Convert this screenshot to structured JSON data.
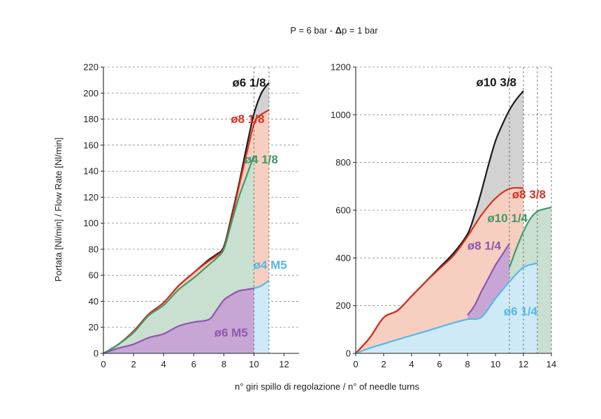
{
  "figure": {
    "condition_prefix": "P = 6 bar - ",
    "condition_delta": "Δ",
    "condition_suffix": "p = 1 bar",
    "ylabel": "Portata [Nl/min] / Flow Rate [Nl/min]",
    "xlabel": "n° giri spillo di regolazione / n° of needle turns"
  },
  "chart_data": [
    {
      "type": "area",
      "xlim": [
        0,
        13
      ],
      "ylim": [
        0,
        220
      ],
      "xticks": [
        0,
        2,
        4,
        6,
        8,
        10,
        12
      ],
      "yticks": [
        0,
        20,
        40,
        60,
        80,
        100,
        120,
        140,
        160,
        180,
        200,
        220
      ],
      "vlines": [
        10,
        11
      ],
      "grid": "horizontal dashed",
      "series": [
        {
          "name": "ø6 1/8",
          "color": "#1a1a1a",
          "fill": "#d2d2d2",
          "x": [
            0,
            1,
            2,
            3,
            4,
            5,
            6,
            7,
            7.5,
            8,
            8.5,
            9,
            9.5,
            10,
            10.5,
            11
          ],
          "y": [
            0,
            7,
            17,
            30,
            39,
            52,
            62,
            72,
            76,
            82,
            105,
            130,
            158,
            184,
            200,
            208
          ]
        },
        {
          "name": "ø8 1/8",
          "color": "#d9301e",
          "fill": "#f6cfc0",
          "x": [
            0,
            1,
            2,
            3,
            4,
            5,
            6,
            7,
            7.5,
            8,
            8.5,
            9,
            9.5,
            10,
            10.3,
            11
          ],
          "y": [
            0,
            7,
            17,
            30,
            39,
            52,
            62,
            71,
            75,
            81,
            103,
            128,
            153,
            176,
            182,
            187
          ]
        },
        {
          "name": "ø4 1/8",
          "color": "#3d9a6a",
          "fill": "#c9dfcf",
          "x": [
            0,
            1,
            2,
            3,
            4,
            5,
            6,
            7,
            7.5,
            8,
            8.5,
            9,
            9.5,
            10
          ],
          "y": [
            0,
            7,
            16,
            29,
            37,
            49,
            58,
            68,
            73,
            80,
            100,
            120,
            136,
            152
          ]
        },
        {
          "name": "ø4 M5",
          "color": "#55b8e6",
          "fill": "#cfeaf7",
          "x": [
            10,
            10.5,
            11
          ],
          "y": [
            50,
            52,
            56
          ]
        },
        {
          "name": "ø6 M5",
          "color": "#8e56ad",
          "fill": "#c7a6d6",
          "x": [
            0,
            1,
            2,
            3,
            4,
            5,
            6,
            7,
            7.5,
            8,
            8.5,
            9,
            9.5,
            10
          ],
          "y": [
            0,
            4,
            7,
            12,
            15,
            21,
            24,
            26,
            33,
            41,
            45,
            48,
            49,
            50
          ]
        }
      ]
    },
    {
      "type": "area",
      "xlim": [
        0,
        14
      ],
      "ylim": [
        0,
        1200
      ],
      "xticks": [
        0,
        2,
        4,
        6,
        8,
        10,
        12,
        14
      ],
      "yticks": [
        0,
        200,
        400,
        600,
        800,
        1000,
        1200
      ],
      "vlines": [
        11,
        12,
        13,
        14
      ],
      "grid": "horizontal dashed",
      "series": [
        {
          "name": "ø10 3/8",
          "color": "#1a1a1a",
          "fill": "#d2d2d2",
          "x": [
            0,
            1,
            2,
            3,
            4,
            5,
            6,
            7,
            8,
            8.5,
            9,
            9.5,
            10,
            10.5,
            11,
            11.5,
            12
          ],
          "y": [
            0,
            65,
            150,
            180,
            240,
            300,
            360,
            420,
            500,
            580,
            680,
            790,
            890,
            960,
            1020,
            1065,
            1100
          ]
        },
        {
          "name": "ø8 3/8",
          "color": "#d9301e",
          "fill": "#f6cfc0",
          "x": [
            0,
            1,
            2,
            3,
            4,
            5,
            6,
            7,
            8,
            9,
            10,
            11,
            12
          ],
          "y": [
            0,
            65,
            150,
            180,
            240,
            300,
            355,
            410,
            490,
            580,
            650,
            690,
            693
          ]
        },
        {
          "name": "ø10 1/4",
          "color": "#3d9a6a",
          "fill": "#c9dfcf",
          "x": [
            11,
            11.5,
            12,
            12.5,
            13,
            13.5,
            14
          ],
          "y": [
            360,
            440,
            510,
            565,
            595,
            605,
            612
          ]
        },
        {
          "name": "ø8 1/4",
          "color": "#8e56ad",
          "fill": "#c7a6d6",
          "x": [
            8,
            8.5,
            9,
            9.5,
            10,
            10.5,
            11
          ],
          "y": [
            160,
            200,
            260,
            315,
            370,
            415,
            460
          ]
        },
        {
          "name": "ø6 1/4",
          "color": "#55b8e6",
          "fill": "#cfeaf7",
          "x": [
            0,
            1,
            2,
            3,
            4,
            5,
            6,
            7,
            8,
            9,
            10,
            11,
            12,
            13
          ],
          "y": [
            0,
            22,
            40,
            58,
            75,
            92,
            110,
            128,
            143,
            152,
            230,
            300,
            360,
            378
          ]
        }
      ]
    }
  ]
}
